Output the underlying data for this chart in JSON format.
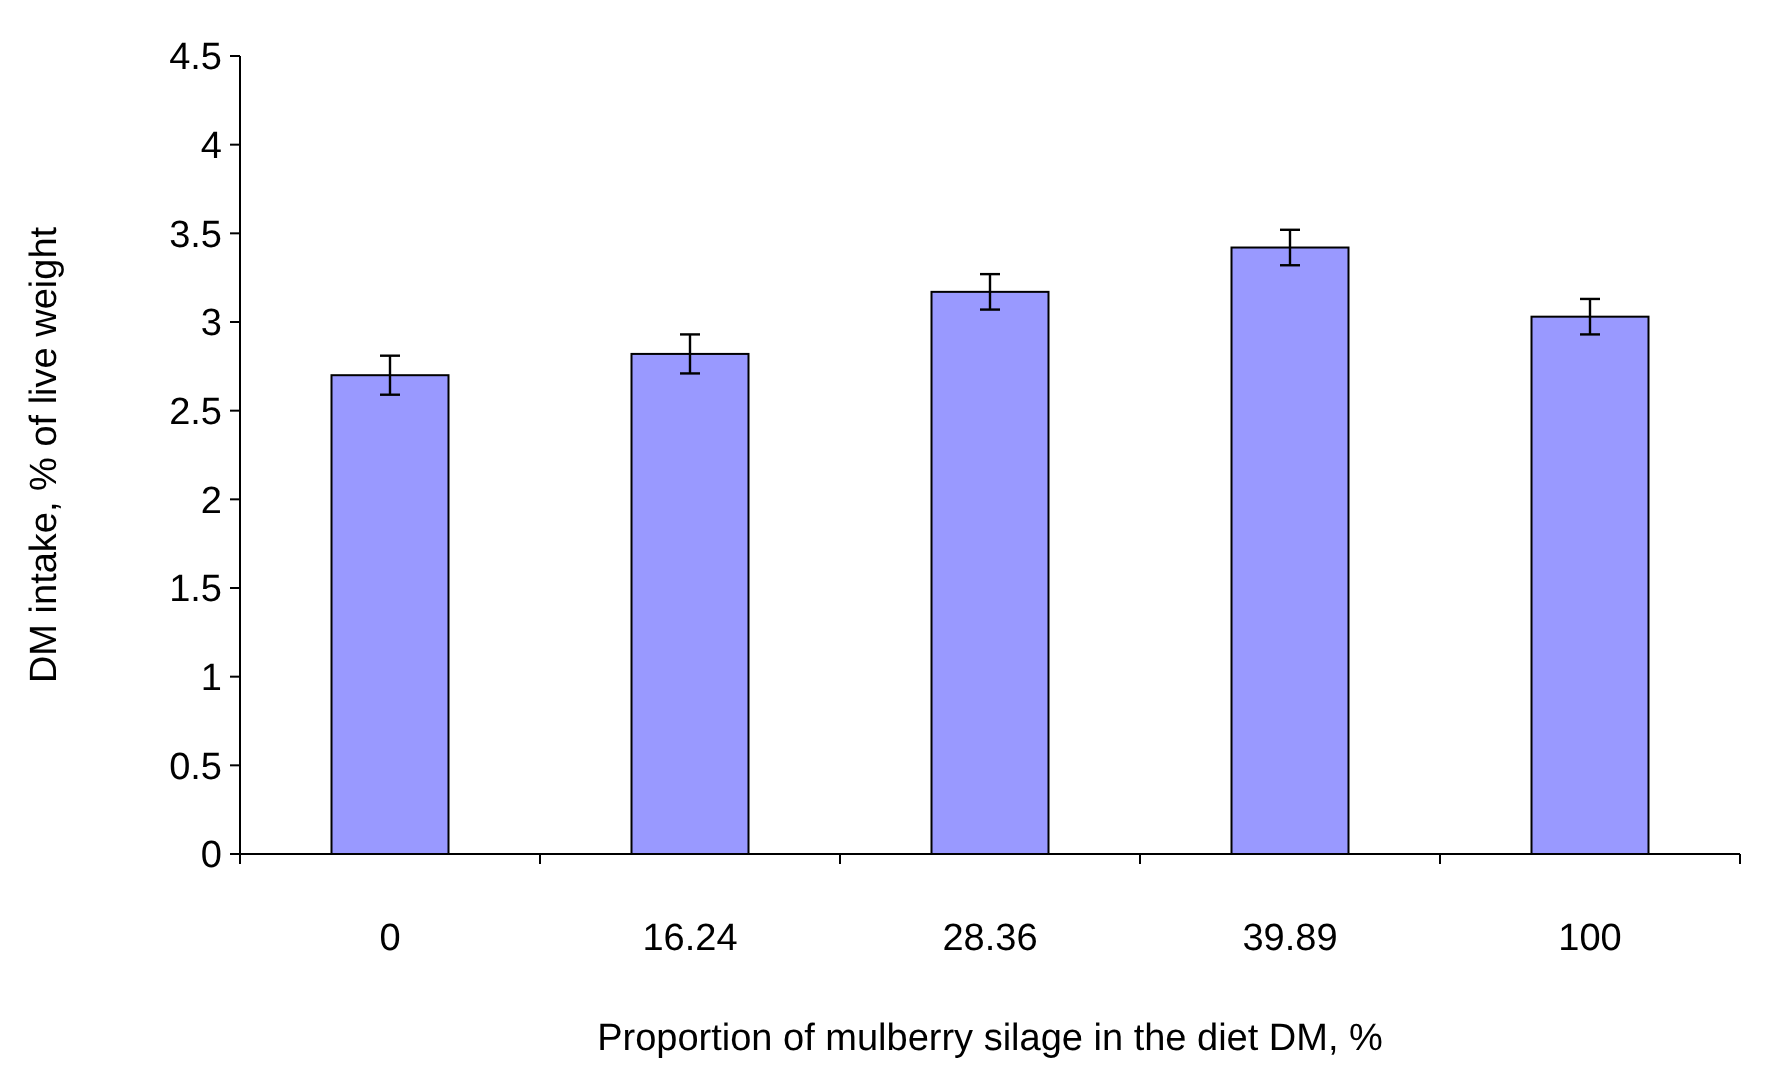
{
  "chart_data": {
    "type": "bar",
    "xlabel": "Proportion of mulberry silage in the diet DM, %",
    "ylabel": "DM intake, % of live weight",
    "categories": [
      "0",
      "16.24",
      "28.36",
      "39.89",
      "100"
    ],
    "series": [
      {
        "color": "#9999ff",
        "values": [
          2.7,
          2.82,
          3.17,
          3.42,
          3.03
        ],
        "errors": [
          0.11,
          0.11,
          0.1,
          0.1,
          0.1
        ]
      }
    ],
    "ylim": [
      0,
      4.5
    ],
    "yticks": [
      0,
      0.5,
      1,
      1.5,
      2,
      2.5,
      3,
      3.5,
      4,
      4.5
    ],
    "grid": false
  }
}
